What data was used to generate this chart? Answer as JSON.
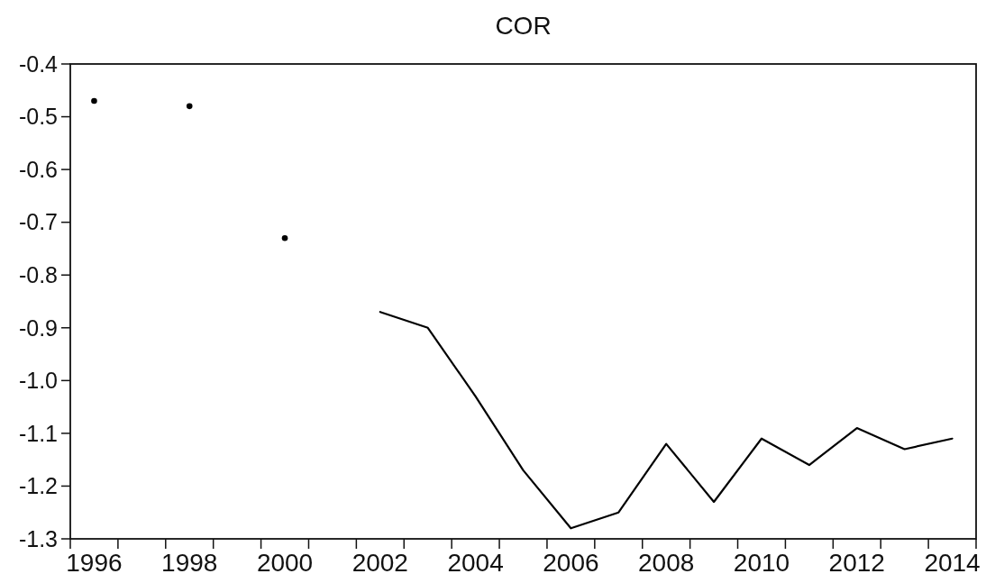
{
  "chart_data": {
    "type": "line",
    "title": "COR",
    "categories": [
      "1996",
      null,
      "1998",
      null,
      "2000",
      null,
      "2002",
      null,
      "2004",
      null,
      "2006",
      null,
      "2008",
      null,
      "2010",
      null,
      "2012",
      null,
      "2014"
    ],
    "series": [
      {
        "type": "scatter",
        "color": "#000000",
        "values": [
          -0.47,
          null,
          -0.48,
          null,
          -0.73,
          null,
          null,
          null,
          null,
          null,
          null,
          null,
          null,
          null,
          null,
          null,
          null,
          null,
          null
        ]
      },
      {
        "color": "#000000",
        "values": [
          null,
          null,
          null,
          null,
          null,
          null,
          -0.87,
          -0.9,
          -1.03,
          -1.17,
          -1.28,
          -1.25,
          -1.12,
          -1.23,
          -1.11,
          -1.16,
          -1.09,
          -1.13,
          -1.11
        ]
      }
    ],
    "ylim": [
      -1.3,
      -0.4
    ],
    "yticks": [
      -1.3,
      -1.2,
      -1.1,
      {
        "value": -1.0,
        "label": "-1.0"
      },
      -0.9,
      -0.8,
      -0.7,
      -0.6,
      -0.5,
      -0.4
    ],
    "line_style": "solid"
  }
}
